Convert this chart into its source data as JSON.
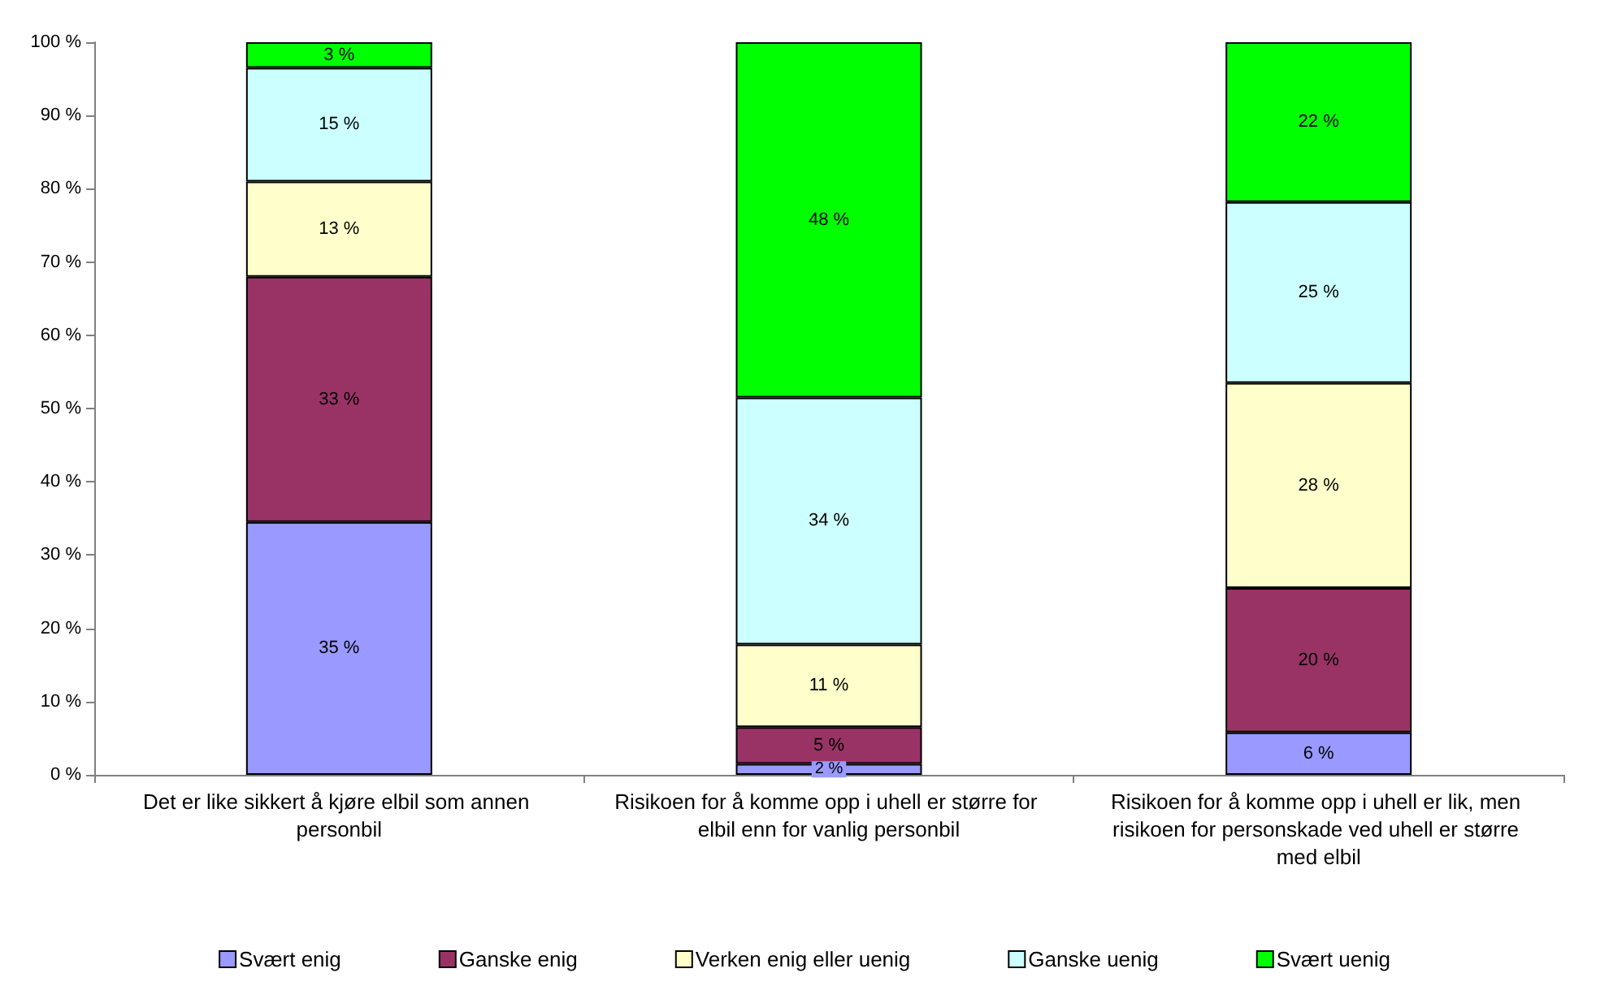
{
  "chart_data": {
    "type": "bar",
    "stacked": true,
    "categories": [
      "Det er like sikkert å kjøre elbil som annen personbil",
      "Risikoen for å komme opp i uhell er større for elbil enn for vanlig personbil",
      "Risikoen for å komme opp i uhell er lik, men risikoen for personskade ved uhell er større med elbil"
    ],
    "series": [
      {
        "name": "Svært enig",
        "color": "#9999ff",
        "values": [
          34.5,
          1.5,
          5.8
        ],
        "value_labels": [
          "35 %",
          "2 %",
          "6 %"
        ]
      },
      {
        "name": "Ganske enig",
        "color": "#993366",
        "values": [
          33.5,
          5,
          19.7
        ],
        "value_labels": [
          "33 %",
          "5 %",
          "20 %"
        ]
      },
      {
        "name": "Verken enig eller uenig",
        "color": "#ffffcc",
        "values": [
          13,
          11.3,
          28
        ],
        "value_labels": [
          "13 %",
          "11 %",
          "28 %"
        ]
      },
      {
        "name": "Ganske uenig",
        "color": "#ccffff",
        "values": [
          15.5,
          33.7,
          24.7
        ],
        "value_labels": [
          "15 %",
          "34 %",
          "25 %"
        ]
      },
      {
        "name": "Svært uenig",
        "color": "#00ff00",
        "values": [
          3.5,
          48.5,
          21.8
        ],
        "value_labels": [
          "3 %",
          "48 %",
          "22 %"
        ]
      }
    ],
    "ylim": [
      0,
      100
    ],
    "yticks": [
      {
        "value": 0,
        "label": "0 %"
      },
      {
        "value": 10,
        "label": "10 %"
      },
      {
        "value": 20,
        "label": "20 %"
      },
      {
        "value": 30,
        "label": "30 %"
      },
      {
        "value": 40,
        "label": "40 %"
      },
      {
        "value": 50,
        "label": "50 %"
      },
      {
        "value": 60,
        "label": "60 %"
      },
      {
        "value": 70,
        "label": "70 %"
      },
      {
        "value": 80,
        "label": "80 %"
      },
      {
        "value": 90,
        "label": "90 %"
      },
      {
        "value": 100,
        "label": "100 %"
      }
    ],
    "grid": false,
    "legend": "bottom"
  }
}
